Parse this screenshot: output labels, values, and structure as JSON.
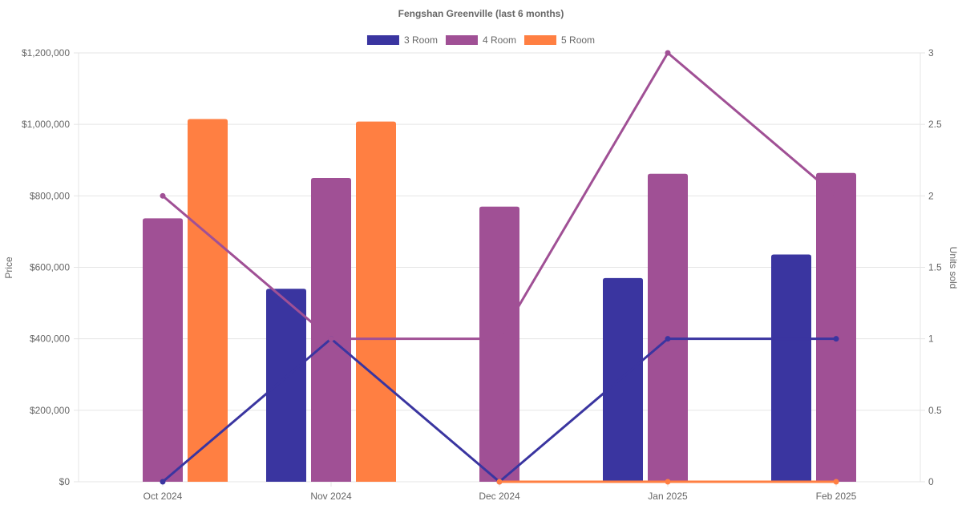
{
  "chart_data": {
    "type": "bar",
    "title": "Fengshan Greenville (last 6 months)",
    "categories": [
      "Oct 2024",
      "Nov 2024",
      "Dec 2024",
      "Jan 2025",
      "Feb 2025"
    ],
    "y_left": {
      "label": "Price",
      "range": [
        0,
        1200000
      ],
      "ticks": [
        "$0",
        "$200,000",
        "$400,000",
        "$600,000",
        "$800,000",
        "$1,000,000",
        "$1,200,000"
      ]
    },
    "y_right": {
      "label": "Units sold",
      "range": [
        0,
        3
      ],
      "ticks": [
        "0",
        "0.5",
        "1",
        "1.5",
        "2",
        "2.5",
        "3"
      ]
    },
    "series": [
      {
        "name": "3 Room",
        "color": "#3a35a0",
        "price": [
          null,
          540000,
          null,
          570000,
          636000
        ],
        "units": [
          0,
          1,
          0,
          1,
          1
        ]
      },
      {
        "name": "4 Room",
        "color": "#a05095",
        "price": [
          737000,
          850000,
          770000,
          862000,
          864000
        ],
        "units": [
          2,
          1,
          1,
          3,
          2
        ]
      },
      {
        "name": "5 Room",
        "color": "#ff7f42",
        "price": [
          1015000,
          1008000,
          null,
          null,
          null
        ],
        "units": [
          null,
          null,
          0,
          0,
          0
        ]
      }
    ],
    "legend_position": "top",
    "grid": true
  }
}
